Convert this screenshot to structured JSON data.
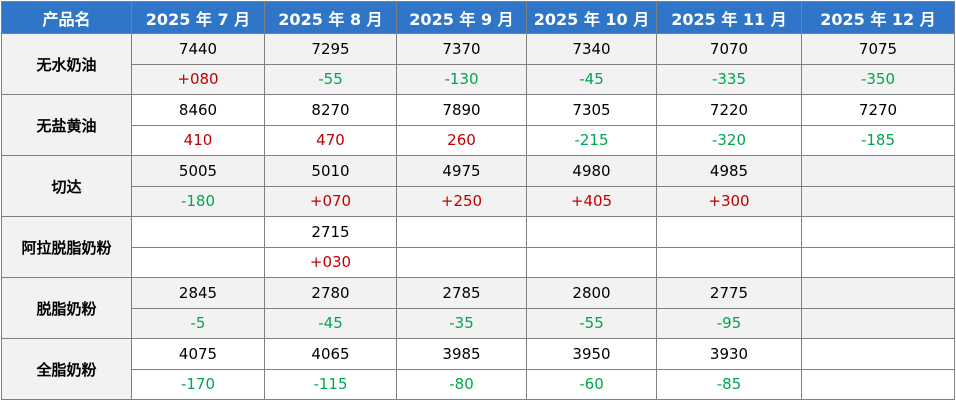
{
  "table": {
    "header": [
      "产品名",
      "2025 年 7 月",
      "2025 年 8 月",
      "2025 年 9 月",
      "2025 年 10 月",
      "2025 年 11 月",
      "2025 年 12 月"
    ],
    "rows": [
      {
        "name": "无水奶油",
        "prices": [
          "7440",
          "7295",
          "7370",
          "7340",
          "7070",
          "7075"
        ],
        "changes": [
          "+080",
          "-55",
          "-130",
          "-45",
          "-335",
          "-350"
        ]
      },
      {
        "name": "无盐黄油",
        "prices": [
          "8460",
          "8270",
          "7890",
          "7305",
          "7220",
          "7270"
        ],
        "changes": [
          "410",
          "470",
          "260",
          "-215",
          "-320",
          "-185"
        ]
      },
      {
        "name": "切达",
        "prices": [
          "5005",
          "5010",
          "4975",
          "4980",
          "4985",
          null
        ],
        "changes": [
          "-180",
          "+070",
          "+250",
          "+405",
          "+300",
          null
        ]
      },
      {
        "name": "阿拉脱脂奶粉",
        "prices": [
          null,
          "2715",
          null,
          null,
          null,
          null
        ],
        "changes": [
          null,
          "+030",
          null,
          null,
          null,
          null
        ]
      },
      {
        "name": "脱脂奶粉",
        "prices": [
          "2845",
          "2780",
          "2785",
          "2800",
          "2775",
          null
        ],
        "changes": [
          "-5",
          "-45",
          "-35",
          "-55",
          "-95",
          null
        ]
      },
      {
        "name": "全脂奶粉",
        "prices": [
          "4075",
          "4065",
          "3985",
          "3950",
          "3930",
          null
        ],
        "changes": [
          "-170",
          "-115",
          "-80",
          "-60",
          "-85",
          null
        ]
      }
    ]
  },
  "colors": {
    "header": "#2f75c8",
    "rise": "#c00000",
    "fall": "#00a550"
  }
}
